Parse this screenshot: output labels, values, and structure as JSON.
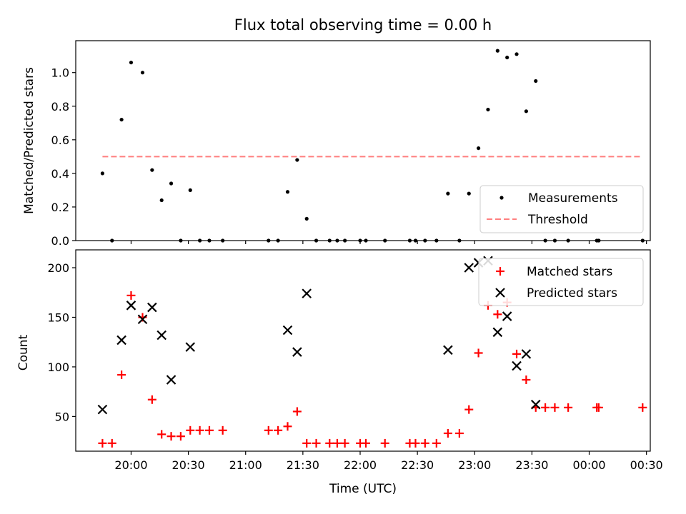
{
  "figure_title": "Flux total observing time = 0.00 h",
  "xlabel": "Time (UTC)",
  "x_ticks": [
    {
      "t": 1200,
      "label": "20:00"
    },
    {
      "t": 1230,
      "label": "20:30"
    },
    {
      "t": 1260,
      "label": "21:00"
    },
    {
      "t": 1290,
      "label": "21:30"
    },
    {
      "t": 1320,
      "label": "22:00"
    },
    {
      "t": 1350,
      "label": "22:30"
    },
    {
      "t": 1380,
      "label": "23:00"
    },
    {
      "t": 1410,
      "label": "23:30"
    },
    {
      "t": 1440,
      "label": "00:00"
    },
    {
      "t": 1470,
      "label": "00:30"
    }
  ],
  "colors": {
    "measurements": "#000000",
    "threshold": "#ff7f7f",
    "matched": "#ff0000",
    "predicted": "#000000"
  },
  "chart_data": [
    {
      "type": "scatter",
      "ylabel": "Matched/Predicted stars",
      "xlim": [
        1171,
        1472
      ],
      "ylim": [
        0,
        1.19
      ],
      "y_ticks": [
        0.0,
        0.2,
        0.4,
        0.6,
        0.8,
        1.0
      ],
      "y_tick_labels": [
        "0.0",
        "0.2",
        "0.4",
        "0.6",
        "0.8",
        "1.0"
      ],
      "legend_position": "lower-right",
      "series": [
        {
          "name": "Measurements",
          "marker": "dot",
          "points": [
            [
              1185,
              0.4
            ],
            [
              1190,
              0.0
            ],
            [
              1195,
              0.72
            ],
            [
              1200,
              1.06
            ],
            [
              1206,
              1.0
            ],
            [
              1211,
              0.42
            ],
            [
              1216,
              0.24
            ],
            [
              1221,
              0.34
            ],
            [
              1226,
              0.0
            ],
            [
              1231,
              0.3
            ],
            [
              1236,
              0.0
            ],
            [
              1241,
              0.0
            ],
            [
              1248,
              0.0
            ],
            [
              1272,
              0.0
            ],
            [
              1277,
              0.0
            ],
            [
              1282,
              0.29
            ],
            [
              1287,
              0.48
            ],
            [
              1292,
              0.13
            ],
            [
              1297,
              0.0
            ],
            [
              1304,
              0.0
            ],
            [
              1308,
              0.0
            ],
            [
              1312,
              0.0
            ],
            [
              1320,
              0.0
            ],
            [
              1323,
              0.0
            ],
            [
              1333,
              0.0
            ],
            [
              1346,
              0.0
            ],
            [
              1349,
              0.0
            ],
            [
              1354,
              0.0
            ],
            [
              1360,
              0.0
            ],
            [
              1366,
              0.28
            ],
            [
              1372,
              0.0
            ],
            [
              1377,
              0.28
            ],
            [
              1382,
              0.55
            ],
            [
              1387,
              0.78
            ],
            [
              1392,
              1.13
            ],
            [
              1397,
              1.09
            ],
            [
              1402,
              1.11
            ],
            [
              1407,
              0.77
            ],
            [
              1412,
              0.95
            ],
            [
              1417,
              0.0
            ],
            [
              1422,
              0.0
            ],
            [
              1429,
              0.0
            ],
            [
              1444,
              0.0
            ],
            [
              1445,
              0.0
            ],
            [
              1468,
              0.0
            ]
          ]
        },
        {
          "name": "Threshold",
          "style": "dashed-line",
          "x": [
            1185,
            1468
          ],
          "y": [
            0.5,
            0.5
          ]
        }
      ]
    },
    {
      "type": "scatter",
      "ylabel": "Count",
      "xlim": [
        1171,
        1472
      ],
      "ylim": [
        15,
        218
      ],
      "y_ticks": [
        50,
        100,
        150,
        200
      ],
      "y_tick_labels": [
        "50",
        "100",
        "150",
        "200"
      ],
      "legend_position": "upper-right",
      "series": [
        {
          "name": "Matched stars",
          "marker": "plus",
          "points": [
            [
              1185,
              23
            ],
            [
              1190,
              23
            ],
            [
              1195,
              92
            ],
            [
              1200,
              172
            ],
            [
              1206,
              150
            ],
            [
              1211,
              67
            ],
            [
              1216,
              32
            ],
            [
              1221,
              30
            ],
            [
              1226,
              30
            ],
            [
              1231,
              36
            ],
            [
              1236,
              36
            ],
            [
              1241,
              36
            ],
            [
              1248,
              36
            ],
            [
              1272,
              36
            ],
            [
              1277,
              36
            ],
            [
              1282,
              40
            ],
            [
              1287,
              55
            ],
            [
              1292,
              23
            ],
            [
              1297,
              23
            ],
            [
              1304,
              23
            ],
            [
              1308,
              23
            ],
            [
              1312,
              23
            ],
            [
              1320,
              23
            ],
            [
              1323,
              23
            ],
            [
              1333,
              23
            ],
            [
              1346,
              23
            ],
            [
              1349,
              23
            ],
            [
              1354,
              23
            ],
            [
              1360,
              23
            ],
            [
              1366,
              33
            ],
            [
              1372,
              33
            ],
            [
              1377,
              57
            ],
            [
              1382,
              114
            ],
            [
              1387,
              162
            ],
            [
              1392,
              153
            ],
            [
              1397,
              165
            ],
            [
              1402,
              113
            ],
            [
              1407,
              87
            ],
            [
              1412,
              59
            ],
            [
              1417,
              59
            ],
            [
              1422,
              59
            ],
            [
              1429,
              59
            ],
            [
              1444,
              59
            ],
            [
              1445,
              59
            ],
            [
              1468,
              59
            ]
          ]
        },
        {
          "name": "Predicted stars",
          "marker": "x",
          "points": [
            [
              1185,
              57
            ],
            [
              1195,
              127
            ],
            [
              1200,
              162
            ],
            [
              1206,
              148
            ],
            [
              1211,
              160
            ],
            [
              1216,
              132
            ],
            [
              1221,
              87
            ],
            [
              1231,
              120
            ],
            [
              1282,
              137
            ],
            [
              1287,
              115
            ],
            [
              1292,
              174
            ],
            [
              1366,
              117
            ],
            [
              1377,
              200
            ],
            [
              1382,
              205
            ],
            [
              1387,
              207
            ],
            [
              1392,
              135
            ],
            [
              1397,
              151
            ],
            [
              1402,
              101
            ],
            [
              1407,
              113
            ],
            [
              1412,
              62
            ]
          ]
        }
      ]
    }
  ]
}
